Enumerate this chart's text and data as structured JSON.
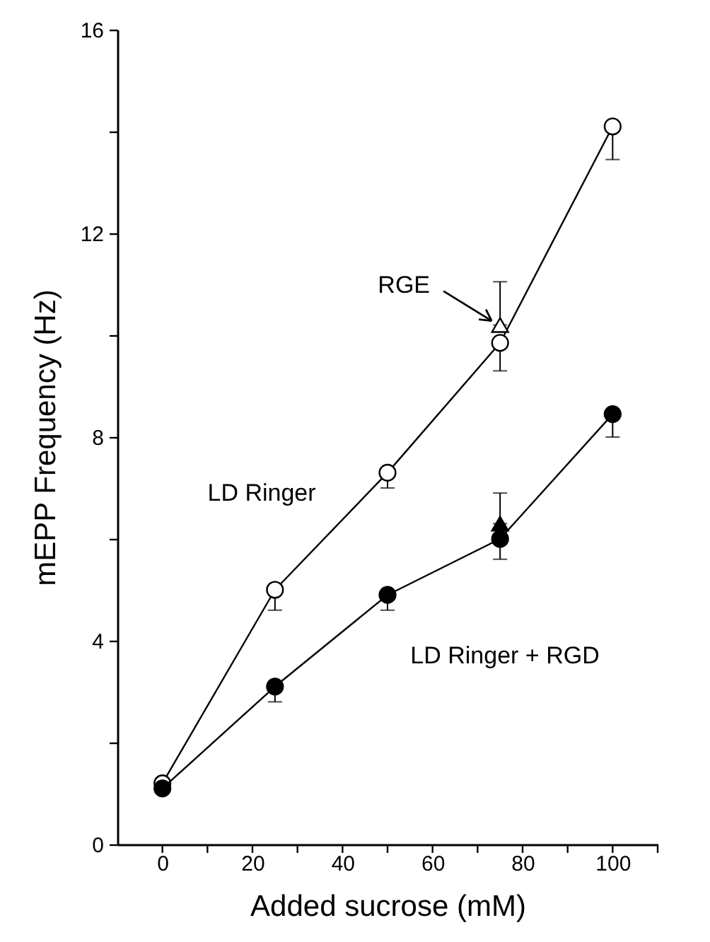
{
  "chart_data": {
    "type": "line",
    "xlabel": "Added sucrose (mM)",
    "ylabel": "mEPP Frequency (Hz)",
    "x": [
      0,
      25,
      50,
      75,
      100
    ],
    "series": [
      {
        "color": "#000000",
        "marker": "circle",
        "colors": [
          "#ffffff",
          "#ffffff",
          "#ffffff",
          "#ffffff",
          "#ffffff"
        ],
        "values": [
          1.2,
          5.0,
          7.3,
          9.85,
          14.1
        ],
        "errors": [
          null,
          [
            4.6,
            5.0
          ],
          [
            7.0,
            7.3
          ],
          [
            9.3,
            9.85
          ],
          [
            13.45,
            14.1
          ]
        ]
      },
      {
        "color": "#000000",
        "marker": "circle",
        "colors": [
          "#000000",
          "#000000",
          "#000000",
          "#000000",
          "#000000"
        ],
        "values": [
          1.1,
          3.1,
          4.9,
          6.0,
          8.45
        ],
        "errors": [
          null,
          [
            2.8,
            3.1
          ],
          [
            4.6,
            4.9
          ],
          [
            5.6,
            6.0
          ],
          [
            8.0,
            8.45
          ]
        ]
      },
      {
        "type": "scatter",
        "color": "#000000",
        "marker": "triangle",
        "colors": [
          "#ffffff"
        ],
        "x": [
          75
        ],
        "values": [
          10.2
        ],
        "errors": [
          [
            10.2,
            11.05
          ]
        ]
      },
      {
        "type": "scatter",
        "color": "#000000",
        "marker": "triangle",
        "colors": [
          "#000000"
        ],
        "x": [
          75
        ],
        "values": [
          6.3
        ],
        "errors": [
          [
            6.3,
            6.9
          ]
        ]
      }
    ],
    "annotations": [
      {
        "text": "RGE",
        "x": 75,
        "y": 10.2
      },
      "LD Ringer",
      "LD Ringer + RGD"
    ],
    "xlim": [
      -10,
      110
    ],
    "xticks": [
      0,
      {
        "value": 10,
        "label": null
      },
      20,
      {
        "value": 30,
        "label": null
      },
      40,
      {
        "value": 50,
        "label": null
      },
      60,
      {
        "value": 70,
        "label": null
      },
      80,
      {
        "value": 90,
        "label": null
      },
      100,
      {
        "value": 110,
        "label": null
      }
    ],
    "ylim": [
      0,
      16
    ],
    "yticks": [
      0,
      {
        "value": 2,
        "label": null
      },
      4,
      {
        "value": 6,
        "label": null
      },
      8,
      {
        "value": 10,
        "label": null
      },
      12,
      {
        "value": 14,
        "label": null
      },
      16
    ],
    "grid": false
  }
}
